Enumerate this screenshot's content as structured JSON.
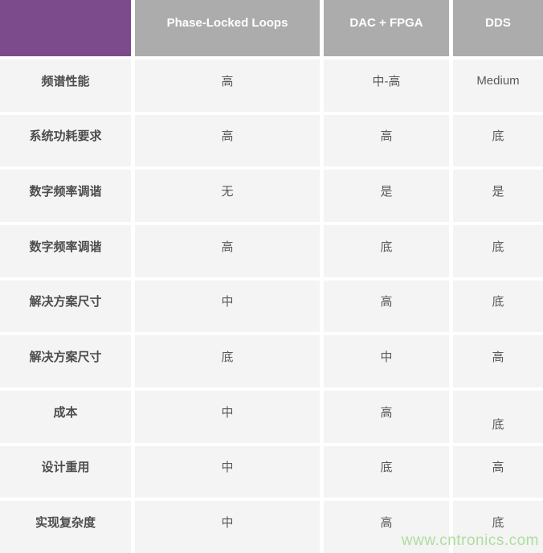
{
  "table": {
    "columns": [
      {
        "label": "Phase-Locked Loops"
      },
      {
        "label": "DAC + FPGA"
      },
      {
        "label": "DDS"
      }
    ],
    "rows": [
      {
        "label": "频谱性能",
        "values": [
          "高",
          "中-高",
          "Medium"
        ]
      },
      {
        "label": "系统功耗要求",
        "values": [
          "高",
          "高",
          "底"
        ]
      },
      {
        "label": "数字频率调谐",
        "values": [
          "无",
          "是",
          "是"
        ]
      },
      {
        "label": "数字频率调谐",
        "values": [
          "高",
          "底",
          "底"
        ]
      },
      {
        "label": "解决方案尺寸",
        "values": [
          "中",
          "高",
          "底"
        ]
      },
      {
        "label": "解决方案尺寸",
        "values": [
          "底",
          "中",
          "高"
        ]
      },
      {
        "label": "成本",
        "values": [
          "中",
          "高",
          "底"
        ]
      },
      {
        "label": "设计重用",
        "values": [
          "中",
          "底",
          "高"
        ]
      },
      {
        "label": "实现复杂度",
        "values": [
          "中",
          "高",
          "底"
        ]
      }
    ]
  },
  "watermark": {
    "text": "www.cntronics.com"
  },
  "colors": {
    "corner_purple": "#7b4b8c",
    "header_gray": "#acacac",
    "cell_background": "#f4f4f4",
    "label_text": "#4d4d4d",
    "value_text": "#595959",
    "watermark_green": "#aedd9f"
  }
}
